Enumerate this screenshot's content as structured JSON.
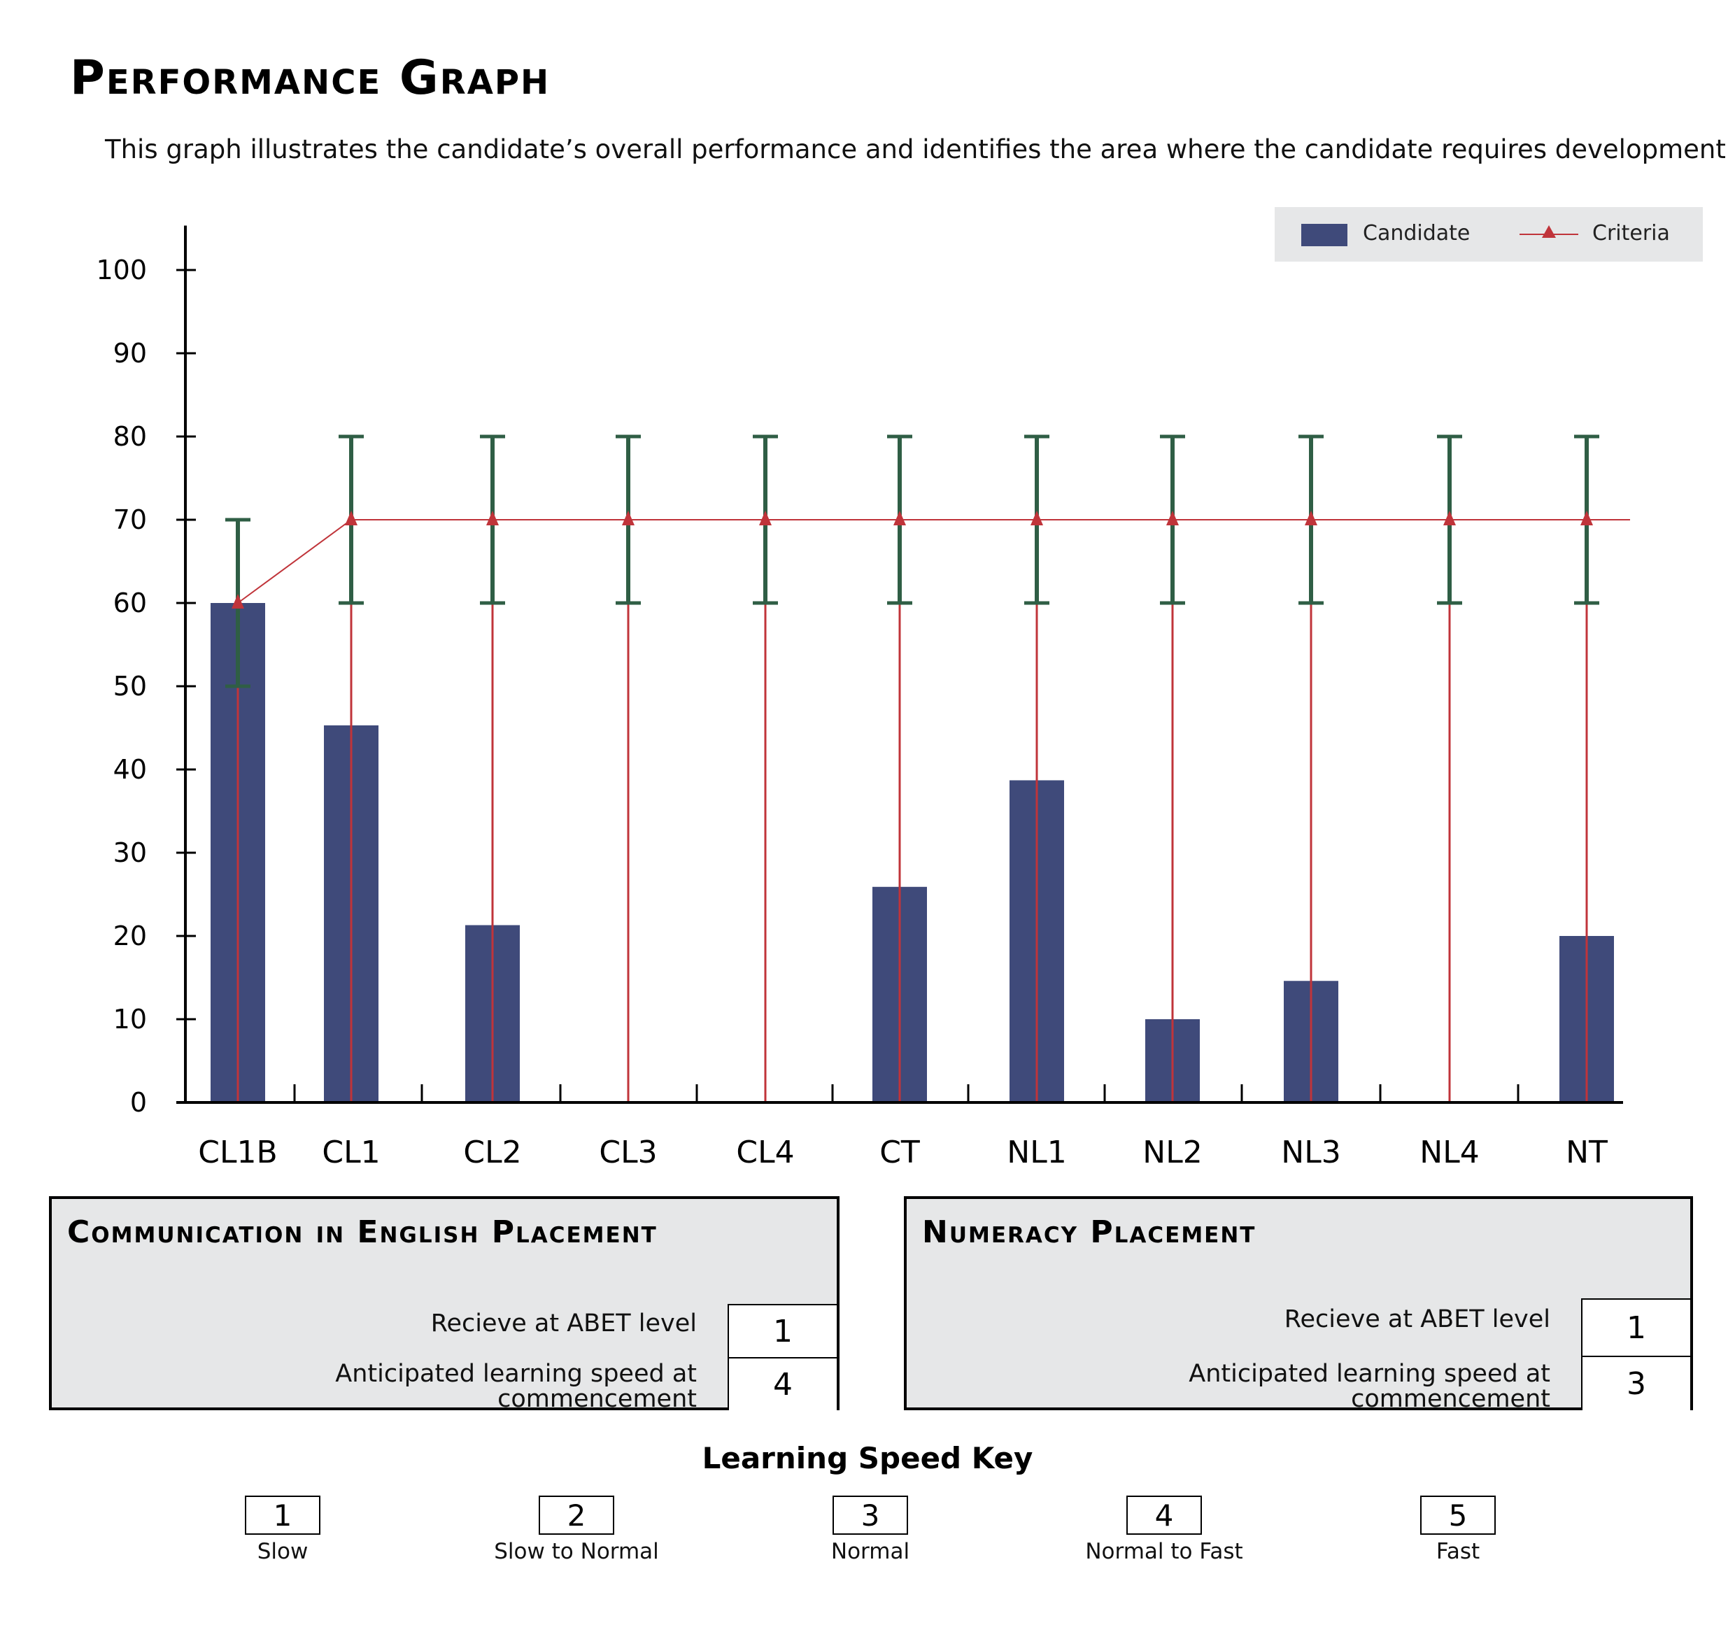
{
  "page": {
    "title": "Performance Graph",
    "subtitle": "This graph illustrates the candidate’s overall performance and identifies the area where the candidate requires development"
  },
  "chart_data": {
    "type": "bar",
    "categories": [
      "CL1B",
      "CL1",
      "CL2",
      "CL3",
      "CL4",
      "CT",
      "NL1",
      "NL2",
      "NL3",
      "NL4",
      "NT"
    ],
    "series": [
      {
        "name": "Candidate",
        "type": "bar",
        "color": "#3f4a7a",
        "values": [
          60,
          45.3,
          21.3,
          0,
          0,
          25.9,
          38.7,
          10,
          14.6,
          0,
          20
        ]
      },
      {
        "name": "Criteria",
        "type": "line",
        "marker": "triangle",
        "color": "#c0343a",
        "values": [
          60,
          70,
          70,
          70,
          70,
          70,
          70,
          70,
          70,
          70,
          70
        ]
      }
    ],
    "error_bars": {
      "color": "#2f5e45",
      "low": [
        50,
        60,
        60,
        60,
        60,
        60,
        60,
        60,
        60,
        60,
        60
      ],
      "high": [
        70,
        80,
        80,
        80,
        80,
        80,
        80,
        80,
        80,
        80,
        80
      ]
    },
    "yticks": [
      0,
      10,
      20,
      30,
      40,
      50,
      60,
      70,
      80,
      90,
      100
    ],
    "ylim": [
      0,
      105
    ],
    "legend_position": "top-right",
    "grid": false
  },
  "legend": {
    "candidate": "Candidate",
    "criteria": "Criteria"
  },
  "english_panel": {
    "title": "Communication in English Placement",
    "abet_label": "Recieve at ABET level",
    "abet_value": "1",
    "speed_label_line1": "Anticipated learning speed at",
    "speed_label_line2": "commencement",
    "speed_value": "4"
  },
  "numeracy_panel": {
    "title": "Numeracy Placement",
    "abet_label": "Recieve at ABET level",
    "abet_value": "1",
    "speed_label_line1": "Anticipated learning speed at",
    "speed_label_line2": "commencement",
    "speed_value": "3"
  },
  "speed_key": {
    "title": "Learning Speed Key",
    "items": [
      {
        "value": "1",
        "label": "Slow"
      },
      {
        "value": "2",
        "label": "Slow to Normal"
      },
      {
        "value": "3",
        "label": "Normal"
      },
      {
        "value": "4",
        "label": "Normal to Fast"
      },
      {
        "value": "5",
        "label": "Fast"
      }
    ]
  }
}
